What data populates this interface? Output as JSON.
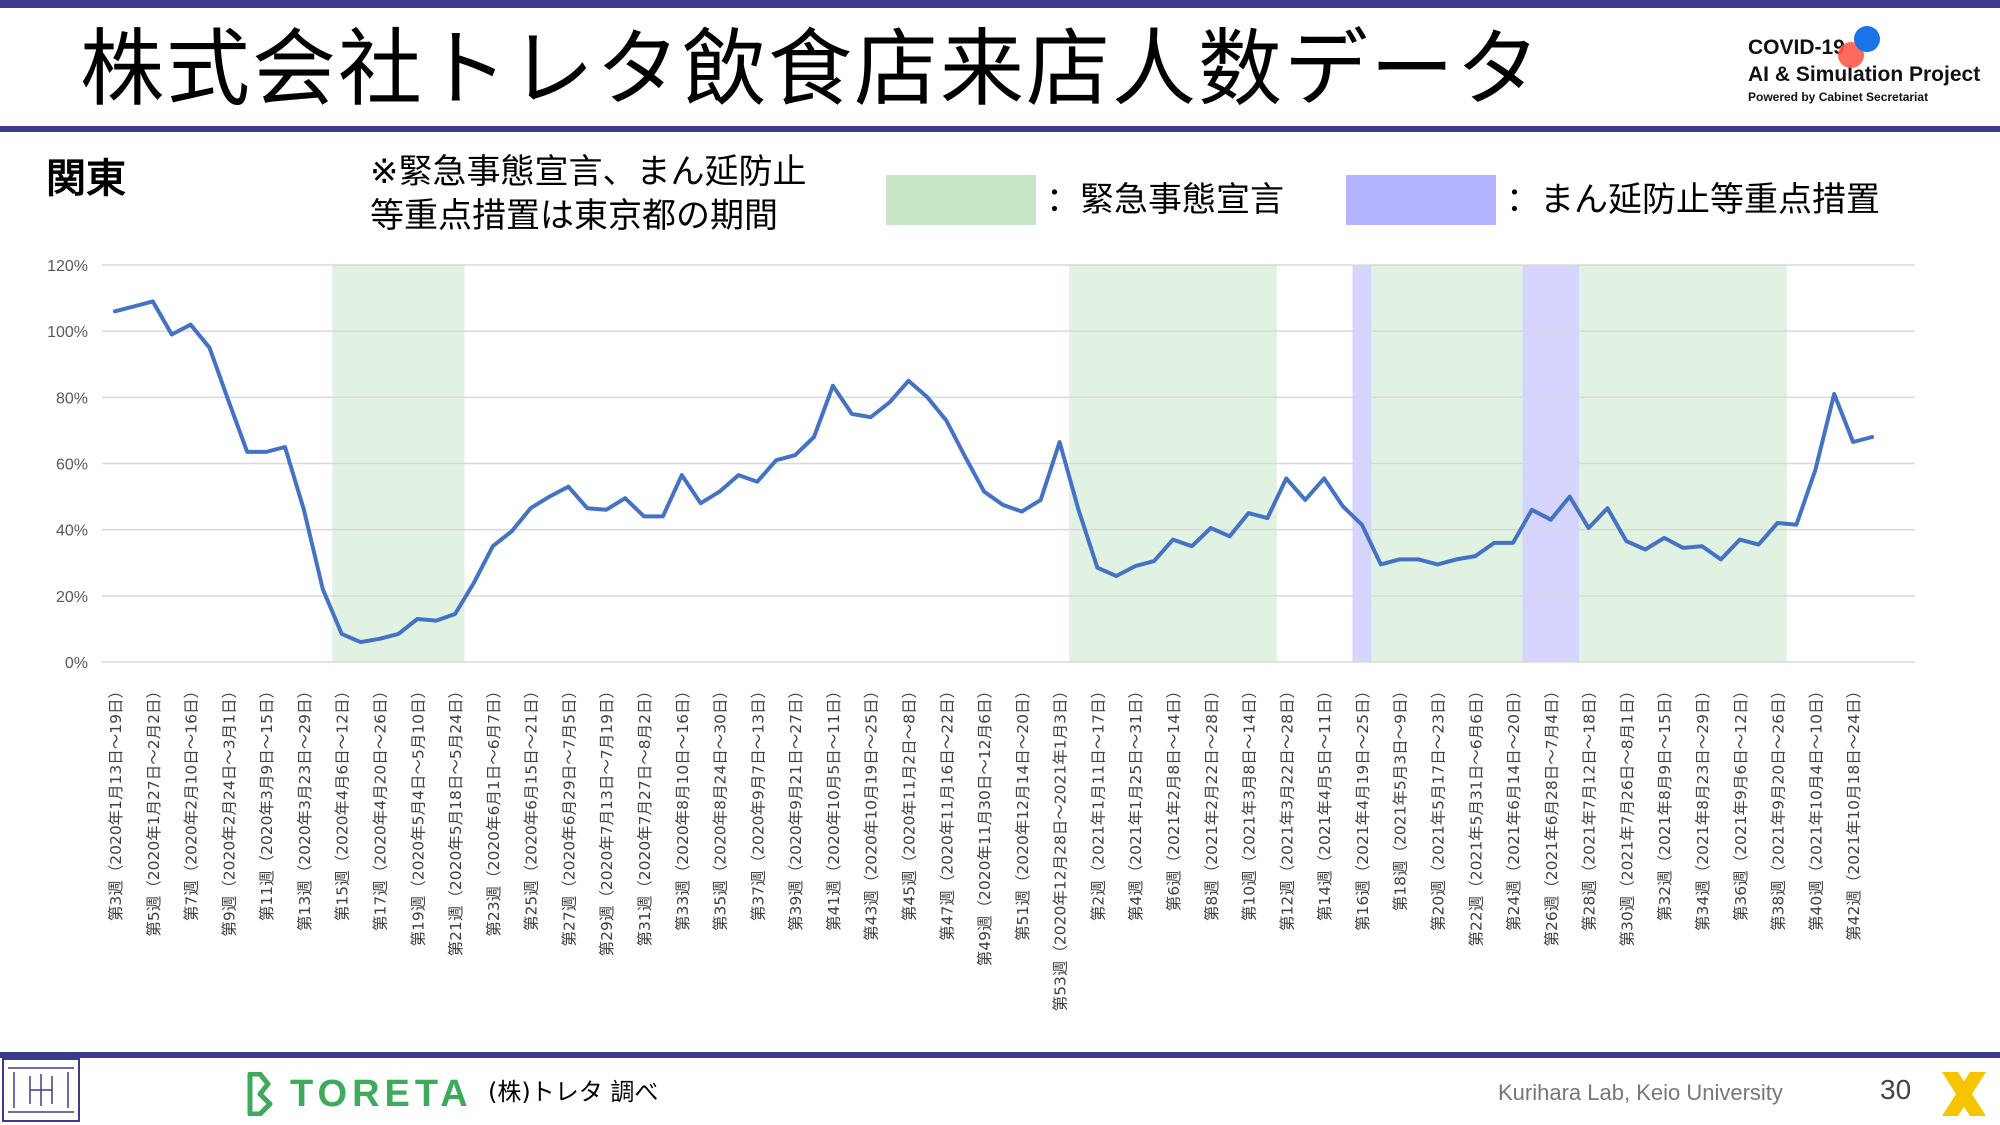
{
  "header": {
    "title": "株式会社トレタ飲食店来店人数データ",
    "project_line1": "COVID-19",
    "project_line2": "AI & Simulation Project",
    "project_line3": "Powered by Cabinet Secretariat"
  },
  "region_label": "関東",
  "note_line1": "※緊急事態宣言、まん延防止",
  "note_line2": "等重点措置は東京都の期間",
  "legend": [
    {
      "label": "：緊急事態宣言",
      "color": "#c6e6c6"
    },
    {
      "label": "：まん延防止等重点措置",
      "color": "#b3b3ff"
    }
  ],
  "footer": {
    "brand": "TORETA",
    "source": "(株)トレタ 調べ",
    "lab": "Kurihara Lab, Keio University",
    "page_number": "30"
  },
  "chart_data": {
    "type": "line",
    "ylim": [
      0,
      120
    ],
    "yticks": [
      "0%",
      "20%",
      "40%",
      "60%",
      "80%",
      "100%",
      "120%"
    ],
    "grid": true,
    "line_color": "#4472c4",
    "categories_shown": [
      "第3週（2020年1月13日～19日）",
      "第5週（2020年1月27日～2月2日）",
      "第7週（2020年2月10日～16日）",
      "第9週（2020年2月24日～3月1日）",
      "第11週（2020年3月9日～15日）",
      "第13週（2020年3月23日～29日）",
      "第15週（2020年4月6日～12日）",
      "第17週（2020年4月20日～26日）",
      "第19週（2020年5月4日～5月10日）",
      "第21週（2020年5月18日～5月24日）",
      "第23週（2020年6月1日～6月7日）",
      "第25週（2020年6月15日～21日）",
      "第27週（2020年6月29日～7月5日）",
      "第29週（2020年7月13日～7月19日）",
      "第31週（2020年7月27日～8月2日）",
      "第33週（2020年8月10日～16日）",
      "第35週（2020年8月24日～30日）",
      "第37週（2020年9月7日～13日）",
      "第39週（2020年9月21日～27日）",
      "第41週（2020年10月5日～11日）",
      "第43週（2020年10月19日～25日）",
      "第45週（2020年11月2日～8日）",
      "第47週（2020年11月16日～22日）",
      "第49週（2020年11月30日～12月6日）",
      "第51週（2020年12月14日～20日）",
      "第53週（2020年12月28日～2021年1月3日）",
      "第2週（2021年1月11日～17日）",
      "第4週（2021年1月25日～31日）",
      "第6週（2021年2月8日～14日）",
      "第8週（2021年2月22日～28日）",
      "第10週（2021年3月8日～14日）",
      "第12週（2021年3月22日～28日）",
      "第14週（2021年4月5日～11日）",
      "第16週（2021年4月19日～25日）",
      "第18週（2021年5月3日～9日）",
      "第20週（2021年5月17日～23日）",
      "第22週（2021年5月31日～6月6日）",
      "第24週（2021年6月14日～20日）",
      "第26週（2021年6月28日～7月4日）",
      "第28週（2021年7月12日～18日）",
      "第30週（2021年7月26日～8月1日）",
      "第32週（2021年8月9日～15日）",
      "第34週（2021年8月23日～29日）",
      "第36週（2021年9月6日～12日）",
      "第38週（2021年9月20日～26日）",
      "第40週（2021年10月4日～10日）",
      "第42週（2021年10月18日～24日）"
    ],
    "series": [
      {
        "values": [
          106,
          107.5,
          109,
          99,
          102,
          95,
          79,
          63.5,
          63.5,
          65,
          46,
          22,
          8.5,
          6,
          7,
          8.5,
          13,
          12.5,
          14.5,
          24,
          35,
          39.5,
          46.5,
          50,
          53,
          46.5,
          46,
          49.5,
          44,
          44,
          56.5,
          48,
          51.5,
          56.5,
          54.5,
          61,
          62.5,
          68,
          83.5,
          75,
          74,
          78.5,
          85,
          80,
          73,
          62,
          51.5,
          47.5,
          45.5,
          49,
          66.5,
          46,
          28.5,
          26,
          29,
          30.5,
          37,
          35,
          40.5,
          38,
          45,
          43.5,
          55.5,
          49,
          55.5,
          47,
          41.5,
          29.5,
          31,
          31,
          29.5,
          31,
          32,
          36,
          36,
          46,
          43,
          50,
          40.5,
          46.5,
          36.5,
          34,
          37.5,
          34.5,
          35,
          31,
          37,
          35.5,
          42,
          41.5,
          58,
          81,
          66.5,
          68
        ]
      }
    ],
    "shaded_periods": [
      {
        "kind": "緊急事態宣言",
        "from_index": 12,
        "to_index": 18
      },
      {
        "kind": "緊急事態宣言",
        "from_index": 51,
        "to_index": 61
      },
      {
        "kind": "まん延防止等重点措置",
        "from_index": 66,
        "to_index": 66
      },
      {
        "kind": "緊急事態宣言",
        "from_index": 67,
        "to_index": 74
      },
      {
        "kind": "まん延防止等重点措置",
        "from_index": 75,
        "to_index": 77
      },
      {
        "kind": "緊急事態宣言",
        "from_index": 78,
        "to_index": 88
      }
    ]
  }
}
